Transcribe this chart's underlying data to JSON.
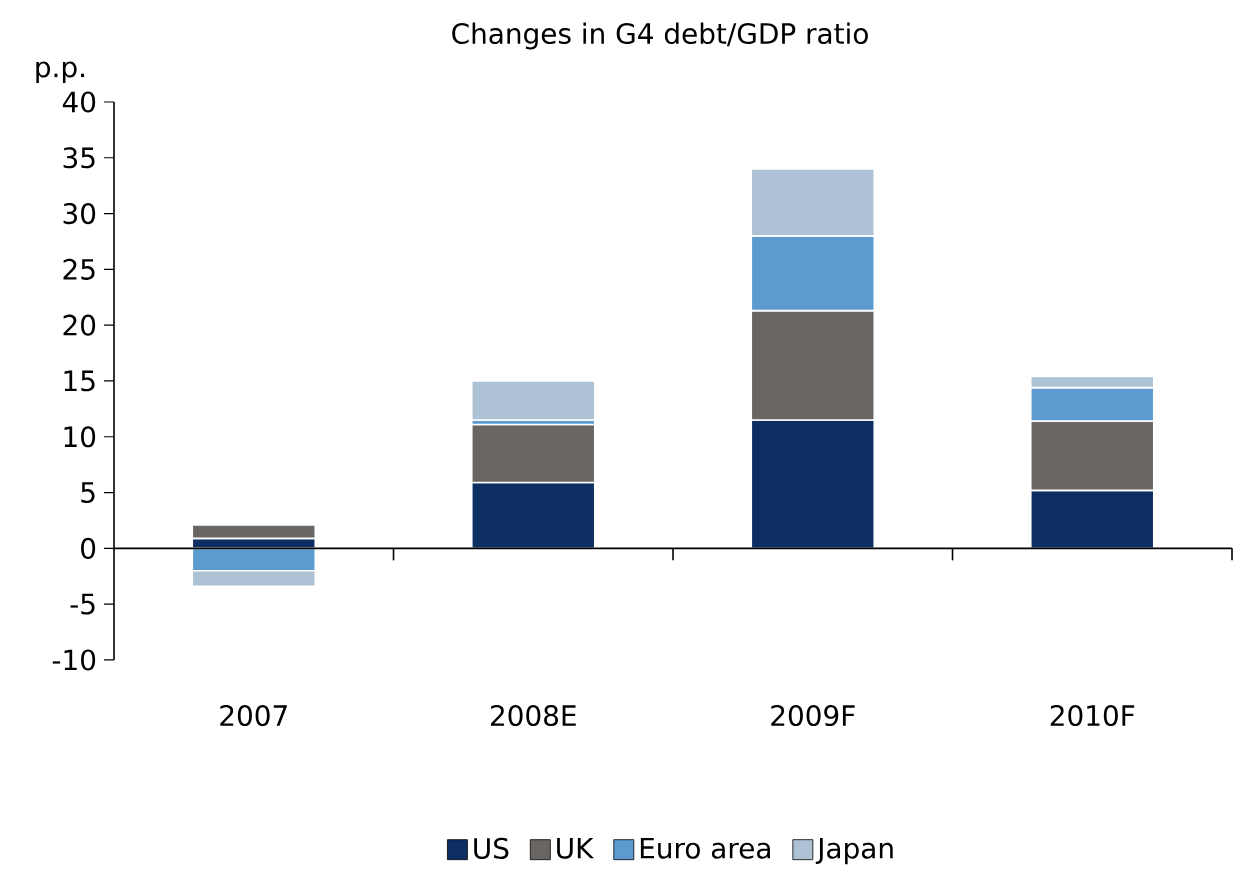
{
  "chart_data": {
    "type": "bar",
    "stacked": true,
    "title": "Changes in G4 debt/GDP ratio",
    "ylabel": "p.p.",
    "categories": [
      "2007",
      "2008E",
      "2009F",
      "2010F"
    ],
    "series": [
      {
        "name": "US",
        "color": "#0d2e63",
        "values": [
          0.9,
          5.9,
          11.5,
          5.2
        ]
      },
      {
        "name": "UK",
        "color": "#686562",
        "values": [
          1.2,
          5.2,
          9.8,
          6.2
        ]
      },
      {
        "name": "Euro area",
        "color": "#5b9bd0",
        "values": [
          -2.0,
          0.4,
          6.7,
          3.0
        ]
      },
      {
        "name": "Japan",
        "color": "#adc2d4",
        "values": [
          -1.4,
          3.5,
          6.0,
          1.0
        ]
      }
    ],
    "ylim": [
      -10,
      40
    ],
    "yticks": [
      -10,
      -5,
      0,
      5,
      10,
      15,
      20,
      25,
      30,
      35,
      40
    ],
    "legend": "bottom"
  }
}
